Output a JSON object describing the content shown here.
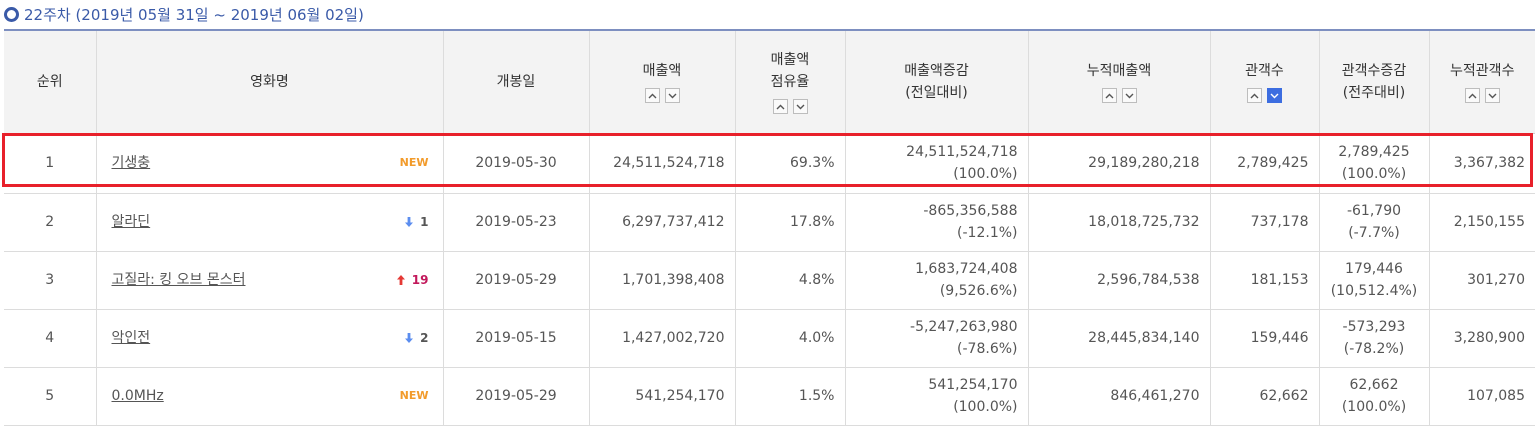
{
  "caption": "22주차 (2019년 05월 31일 ~ 2019년 06월 02일)",
  "columns": {
    "rank": "순위",
    "title": "영화명",
    "open": "개봉일",
    "sales": "매출액",
    "share_line1": "매출액",
    "share_line2": "점유율",
    "sales_delta_line1": "매출액증감",
    "sales_delta_line2": "(전일대비)",
    "acc_sales": "누적매출액",
    "audience": "관객수",
    "aud_delta_line1": "관객수증감",
    "aud_delta_line2": "(전주대비)",
    "acc_aud": "누적관객수"
  },
  "sort_icons": {
    "up": "sort-asc-icon",
    "down": "sort-desc-icon",
    "active_column": "audience-desc"
  },
  "rows": [
    {
      "rank": "1",
      "title": "기생충",
      "badge": "NEW",
      "change_dir": "",
      "change": "",
      "open": "2019-05-30",
      "sales": "24,511,524,718",
      "share": "69.3%",
      "sales_delta": "24,511,524,718",
      "sales_delta_pct": "(100.0%)",
      "acc_sales": "29,189,280,218",
      "audience": "2,789,425",
      "aud_delta": "2,789,425",
      "aud_delta_pct": "(100.0%)",
      "acc_aud": "3,367,382"
    },
    {
      "rank": "2",
      "title": "알라딘",
      "badge": "",
      "change_dir": "down",
      "change": "1",
      "open": "2019-05-23",
      "sales": "6,297,737,412",
      "share": "17.8%",
      "sales_delta": "-865,356,588",
      "sales_delta_pct": "(-12.1%)",
      "acc_sales": "18,018,725,732",
      "audience": "737,178",
      "aud_delta": "-61,790",
      "aud_delta_pct": "(-7.7%)",
      "acc_aud": "2,150,155"
    },
    {
      "rank": "3",
      "title": "고질라: 킹 오브 몬스터",
      "badge": "",
      "change_dir": "up",
      "change": "19",
      "open": "2019-05-29",
      "sales": "1,701,398,408",
      "share": "4.8%",
      "sales_delta": "1,683,724,408",
      "sales_delta_pct": "(9,526.6%)",
      "acc_sales": "2,596,784,538",
      "audience": "181,153",
      "aud_delta": "179,446",
      "aud_delta_pct": "(10,512.4%)",
      "acc_aud": "301,270"
    },
    {
      "rank": "4",
      "title": "악인전",
      "badge": "",
      "change_dir": "down",
      "change": "2",
      "open": "2019-05-15",
      "sales": "1,427,002,720",
      "share": "4.0%",
      "sales_delta": "-5,247,263,980",
      "sales_delta_pct": "(-78.6%)",
      "acc_sales": "28,445,834,140",
      "audience": "159,446",
      "aud_delta": "-573,293",
      "aud_delta_pct": "(-78.2%)",
      "acc_aud": "3,280,900"
    },
    {
      "rank": "5",
      "title": "0.0MHz",
      "badge": "NEW",
      "change_dir": "",
      "change": "",
      "open": "2019-05-29",
      "sales": "541,254,170",
      "share": "1.5%",
      "sales_delta": "541,254,170",
      "sales_delta_pct": "(100.0%)",
      "acc_sales": "846,461,270",
      "audience": "62,662",
      "aud_delta": "62,662",
      "aud_delta_pct": "(100.0%)",
      "acc_aud": "107,085"
    }
  ],
  "highlighted_rank": "1",
  "colors": {
    "caption": "#3a5aa8",
    "header_bg": "#f3f3f3",
    "highlight": "#e8202a",
    "new_badge": "#f29b2b",
    "rank_up": "#e53935",
    "rank_down": "#5b8def",
    "sort_active": "#3c6de0"
  }
}
